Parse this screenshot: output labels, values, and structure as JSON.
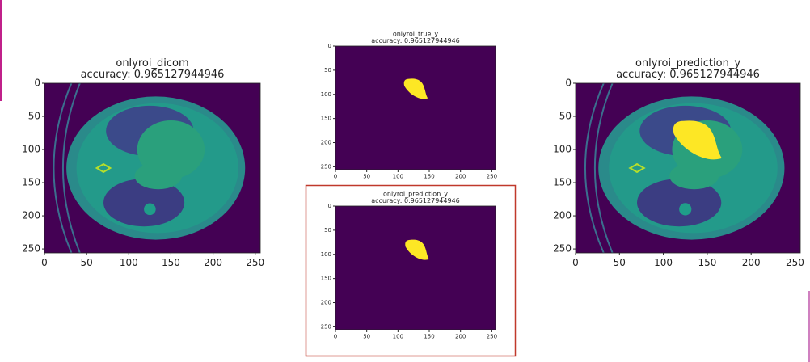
{
  "panels": [
    {
      "title": "onlyroi_dicom",
      "subtitle": "accuracy: 0.965127944946",
      "xlim": [
        0,
        256
      ],
      "ylim": [
        256,
        0
      ],
      "xticks": [
        0,
        50,
        100,
        150,
        200,
        250
      ],
      "yticks": [
        0,
        50,
        100,
        150,
        200,
        250
      ]
    },
    {
      "title": "onlyroi_true_y",
      "subtitle": "accuracy: 0.965127944946",
      "xlim": [
        0,
        256
      ],
      "ylim": [
        256,
        0
      ],
      "xticks": [
        0,
        50,
        100,
        150,
        200,
        250
      ],
      "yticks": [
        0,
        50,
        100,
        150,
        200,
        250
      ]
    },
    {
      "title": "onlyroi_prediction_y",
      "subtitle": "accuracy: 0.965127944946",
      "xlim": [
        0,
        256
      ],
      "ylim": [
        256,
        0
      ],
      "xticks": [
        0,
        50,
        100,
        150,
        200,
        250
      ],
      "yticks": [
        0,
        50,
        100,
        150,
        200,
        250
      ]
    },
    {
      "title": "onlyroi_prediction_y",
      "subtitle": "accuracy: 0.965127944946",
      "xlim": [
        0,
        256
      ],
      "ylim": [
        256,
        0
      ],
      "xticks": [
        0,
        50,
        100,
        150,
        200,
        250
      ],
      "yticks": [
        0,
        50,
        100,
        150,
        200,
        250
      ]
    }
  ]
}
